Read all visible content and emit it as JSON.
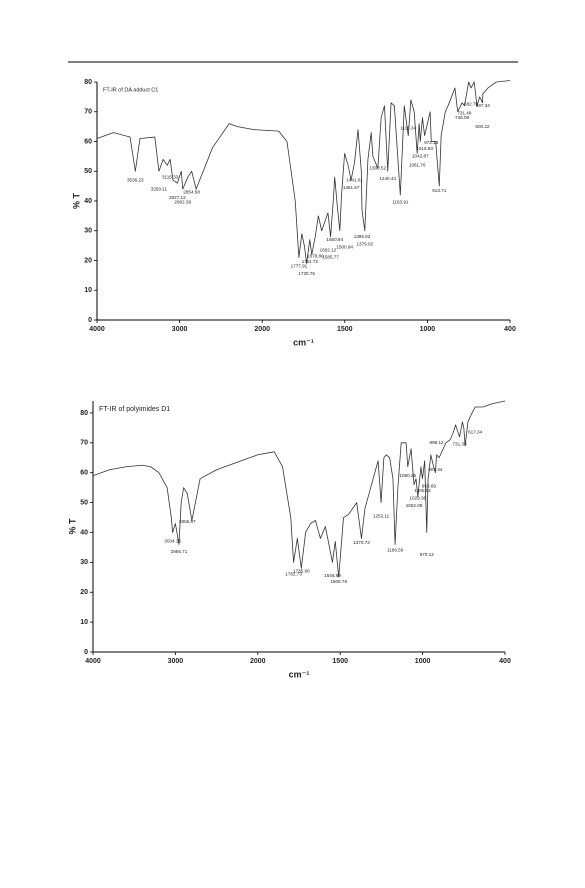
{
  "chart_data": [
    {
      "type": "line",
      "title": "FT-IR of DA adduct C1",
      "xlabel": "cm⁻¹",
      "ylabel": "% T",
      "color": "#333333",
      "xlim": [
        4000,
        400
      ],
      "xticks": [
        4000,
        3000,
        2000,
        1500,
        1000,
        400
      ],
      "ylim": [
        0,
        80
      ],
      "yticks": [
        0,
        10,
        20,
        30,
        40,
        50,
        60,
        70,
        80
      ],
      "x": [
        4000,
        3800,
        3600,
        3536,
        3480,
        3300,
        3250,
        3200,
        3150,
        3115,
        3080,
        3027,
        2980,
        2962,
        2900,
        2854,
        2800,
        2600,
        2400,
        2300,
        2100,
        1900,
        1850,
        1800,
        1778,
        1760,
        1745,
        1731,
        1712,
        1700,
        1679,
        1660,
        1640,
        1602,
        1586,
        1570,
        1561,
        1545,
        1530,
        1520,
        1501,
        1480,
        1462,
        1441,
        1420,
        1400,
        1396,
        1379,
        1360,
        1340,
        1330,
        1300,
        1280,
        1260,
        1240,
        1220,
        1200,
        1164,
        1140,
        1116,
        1100,
        1080,
        1062,
        1050,
        1043,
        1030,
        1017,
        1000,
        980,
        972,
        940,
        914,
        900,
        870,
        850,
        800,
        780,
        748,
        731,
        700,
        683,
        660,
        640,
        620,
        600,
        597,
        560,
        500,
        400
      ],
      "values": [
        61,
        63,
        61.5,
        50,
        61,
        61.5,
        50,
        54,
        52,
        54,
        47,
        46,
        50,
        44,
        48,
        50,
        44,
        58,
        66,
        65,
        64,
        63.5,
        60,
        40,
        21,
        29,
        25,
        19,
        27,
        22,
        28,
        35,
        30,
        36,
        28,
        40,
        48,
        38,
        30,
        42,
        56,
        52,
        47,
        53,
        64,
        50,
        37,
        30,
        54,
        63,
        55,
        51,
        68,
        72,
        50,
        73,
        72,
        42,
        72,
        62,
        74,
        70,
        56,
        66,
        60,
        68,
        62,
        66,
        70,
        60,
        60,
        45,
        62,
        70,
        72,
        78,
        70,
        73,
        72,
        80,
        78,
        80,
        72,
        75,
        73,
        76,
        78,
        80,
        80.5
      ],
      "annotations": [
        {
          "x": 3536.23,
          "y": 47,
          "label": "3536.23"
        },
        {
          "x": 3250.11,
          "y": 44,
          "label": "3250.11"
        },
        {
          "x": 3115.33,
          "y": 48,
          "label": "3115.33"
        },
        {
          "x": 3027.12,
          "y": 41,
          "label": "3027.12"
        },
        {
          "x": 2962.38,
          "y": 39.5,
          "label": "2962.38"
        },
        {
          "x": 2854.58,
          "y": 43,
          "label": "2854.58"
        },
        {
          "x": 1777.91,
          "y": 18,
          "label": "1777.91"
        },
        {
          "x": 1730.76,
          "y": 15.5,
          "label": "1730.76"
        },
        {
          "x": 1711.72,
          "y": 19.5,
          "label": "1711.72"
        },
        {
          "x": 1678.8,
          "y": 21.5,
          "label": "1678.80"
        },
        {
          "x": 1602.12,
          "y": 23.5,
          "label": "1602.12"
        },
        {
          "x": 1585.77,
          "y": 21,
          "label": "1585.77"
        },
        {
          "x": 1560.94,
          "y": 27,
          "label": "1560.94"
        },
        {
          "x": 1500.84,
          "y": 24.5,
          "label": "1500.84"
        },
        {
          "x": 1461.67,
          "y": 44.5,
          "label": "1461.67"
        },
        {
          "x": 1441.01,
          "y": 47,
          "label": "1441.01"
        },
        {
          "x": 1395.92,
          "y": 28,
          "label": "1395.92"
        },
        {
          "x": 1379.02,
          "y": 25.5,
          "label": "1379.02"
        },
        {
          "x": 1300.52,
          "y": 51,
          "label": "1300.52"
        },
        {
          "x": 1240.44,
          "y": 47.5,
          "label": "1240.44"
        },
        {
          "x": 1163.91,
          "y": 39.5,
          "label": "1163.91"
        },
        {
          "x": 1116.34,
          "y": 64.5,
          "label": "1116.34"
        },
        {
          "x": 1061.76,
          "y": 52,
          "label": "1061.76"
        },
        {
          "x": 1042.87,
          "y": 55,
          "label": "1042.87"
        },
        {
          "x": 1016.83,
          "y": 57.5,
          "label": "1016.83"
        },
        {
          "x": 972.16,
          "y": 59.5,
          "label": "972.16"
        },
        {
          "x": 913.71,
          "y": 43.5,
          "label": "913.71"
        },
        {
          "x": 748.09,
          "y": 68,
          "label": "748.09"
        },
        {
          "x": 731.48,
          "y": 69.5,
          "label": "731.48"
        },
        {
          "x": 682.75,
          "y": 72.5,
          "label": "682.75"
        },
        {
          "x": 597.34,
          "y": 72,
          "label": "597.34"
        },
        {
          "x": 600.22,
          "y": 65,
          "label": "600.22"
        }
      ]
    },
    {
      "type": "line",
      "title": "FT-IR of polyimides D1",
      "xlabel": "cm⁻¹",
      "ylabel": "% T",
      "color": "#333333",
      "xlim": [
        4000,
        400
      ],
      "xticks": [
        4000,
        3000,
        2000,
        1500,
        1000,
        400
      ],
      "ylim": [
        0,
        84
      ],
      "yticks": [
        0,
        10,
        20,
        30,
        40,
        50,
        60,
        70,
        80
      ],
      "x": [
        4000,
        3800,
        3600,
        3400,
        3300,
        3200,
        3100,
        3050,
        3034,
        3000,
        2957,
        2930,
        2900,
        2856,
        2800,
        2700,
        2500,
        2300,
        2100,
        2000,
        1900,
        1850,
        1800,
        1783,
        1760,
        1736,
        1710,
        1680,
        1650,
        1620,
        1590,
        1547,
        1530,
        1509,
        1480,
        1450,
        1400,
        1371,
        1350,
        1300,
        1270,
        1252,
        1235,
        1220,
        1200,
        1180,
        1167,
        1150,
        1130,
        1100,
        1090,
        1070,
        1052,
        1040,
        1029,
        1010,
        1001,
        985,
        970,
        960,
        954,
        940,
        920,
        907,
        898,
        880,
        830,
        800,
        780,
        760,
        731,
        710,
        700,
        690,
        670,
        640,
        617,
        560,
        500,
        400
      ],
      "values": [
        59,
        61,
        62,
        62.5,
        62,
        60,
        55,
        45,
        40,
        43,
        36,
        50,
        55,
        53,
        44,
        58,
        61,
        63,
        65,
        66,
        67,
        62,
        45,
        30,
        38,
        28,
        40,
        43,
        44,
        38,
        42,
        30,
        37,
        25,
        45,
        46,
        50,
        38,
        48,
        58,
        64,
        50,
        65,
        66,
        65,
        58,
        36,
        55,
        70,
        70,
        62,
        68,
        56,
        58,
        52,
        62,
        58,
        64,
        40,
        58,
        60,
        66,
        62,
        60,
        66,
        65,
        70,
        71,
        73,
        76,
        72,
        77,
        75,
        69,
        77,
        80,
        82,
        82,
        83,
        84
      ],
      "annotations": [
        {
          "x": 3034.15,
          "y": 37,
          "label": "3034.15"
        },
        {
          "x": 2956.71,
          "y": 33.5,
          "label": "2956.71"
        },
        {
          "x": 2855.87,
          "y": 43.5,
          "label": "2855.87"
        },
        {
          "x": 1782.73,
          "y": 26,
          "label": "1782.73"
        },
        {
          "x": 1735.9,
          "y": 27,
          "label": "1735.90"
        },
        {
          "x": 1546.89,
          "y": 25.5,
          "label": "1546.89"
        },
        {
          "x": 1508.78,
          "y": 23.5,
          "label": "1508.78"
        },
        {
          "x": 1370.73,
          "y": 36.5,
          "label": "1370.73"
        },
        {
          "x": 1252.11,
          "y": 45.5,
          "label": "1252.11"
        },
        {
          "x": 1166.56,
          "y": 34,
          "label": "1166.56"
        },
        {
          "x": 1090.25,
          "y": 59,
          "label": "1090.25"
        },
        {
          "x": 1000.52,
          "y": 54,
          "label": "1000.52"
        },
        {
          "x": 1029.36,
          "y": 51.5,
          "label": "1029.36"
        },
        {
          "x": 1052.09,
          "y": 49,
          "label": "1052.09"
        },
        {
          "x": 970.13,
          "y": 32.5,
          "label": "970.13"
        },
        {
          "x": 953.69,
          "y": 55.5,
          "label": "953.69"
        },
        {
          "x": 907.34,
          "y": 61,
          "label": "907.34"
        },
        {
          "x": 898.12,
          "y": 70,
          "label": "898.12"
        },
        {
          "x": 731.3,
          "y": 69.5,
          "label": "731.30"
        },
        {
          "x": 617.34,
          "y": 73.5,
          "label": "617.34"
        }
      ]
    }
  ]
}
